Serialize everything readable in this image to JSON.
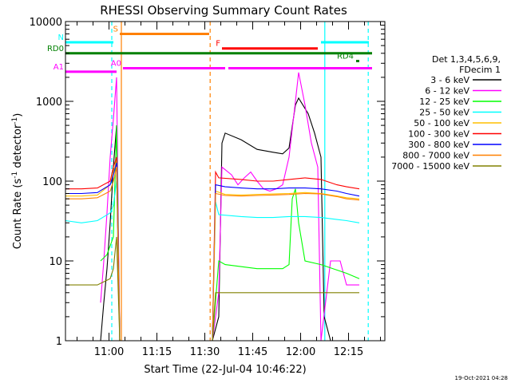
{
  "chart_data": {
    "type": "line",
    "title": "RHESSI Observing Summary Count Rates",
    "xlabel": "Start Time (22-Jul-04 10:46:22)",
    "ylabel_main": "Count Rate (s",
    "ylabel_sup": "-1",
    "ylabel_mid": " detector",
    "ylabel_sup2": "-1",
    "ylabel_end": ")",
    "x_units": "minutes since 10:46:22 UT",
    "xlim": [
      0,
      100
    ],
    "ylim": [
      1,
      10000
    ],
    "y_scale": "log",
    "x_ticks": [
      {
        "label": "11:00",
        "value": 13.63
      },
      {
        "label": "11:15",
        "value": 28.63
      },
      {
        "label": "11:30",
        "value": 43.63
      },
      {
        "label": "11:45",
        "value": 58.63
      },
      {
        "label": "12:00",
        "value": 73.63
      },
      {
        "label": "12:15",
        "value": 88.63
      }
    ],
    "y_ticks": [
      {
        "label": "1",
        "value": 1
      },
      {
        "label": "10",
        "value": 10
      },
      {
        "label": "100",
        "value": 100
      },
      {
        "label": "1000",
        "value": 1000
      },
      {
        "label": "10000",
        "value": 10000
      }
    ],
    "legend_header": [
      "Det 1,3,4,5,6,9,",
      "FDecim 1"
    ],
    "legend_position": "right",
    "series": [
      {
        "name": "3 - 6 keV",
        "color": "#000000",
        "points": [
          [
            11,
            1
          ],
          [
            12,
            3
          ],
          [
            13,
            8
          ],
          [
            14,
            30
          ],
          [
            15,
            150
          ],
          [
            16,
            500
          ],
          [
            17,
            1
          ],
          [
            46,
            1
          ],
          [
            48,
            2
          ],
          [
            49,
            300
          ],
          [
            50,
            400
          ],
          [
            55,
            330
          ],
          [
            60,
            250
          ],
          [
            65,
            230
          ],
          [
            68,
            220
          ],
          [
            70,
            260
          ],
          [
            72,
            900
          ],
          [
            73,
            1100
          ],
          [
            76,
            700
          ],
          [
            78,
            400
          ],
          [
            80,
            200
          ],
          [
            81,
            2
          ],
          [
            83,
            1
          ],
          [
            98,
            1
          ]
        ]
      },
      {
        "name": "6 - 12 keV",
        "color": "#ff00ff",
        "points": [
          [
            11,
            3
          ],
          [
            12,
            10
          ],
          [
            13,
            40
          ],
          [
            14,
            200
          ],
          [
            15,
            600
          ],
          [
            16,
            2000
          ],
          [
            17,
            1
          ],
          [
            46,
            1
          ],
          [
            48,
            4
          ],
          [
            49,
            150
          ],
          [
            52,
            120
          ],
          [
            54,
            90
          ],
          [
            56,
            110
          ],
          [
            58,
            130
          ],
          [
            60,
            100
          ],
          [
            62,
            80
          ],
          [
            64,
            75
          ],
          [
            66,
            80
          ],
          [
            68,
            90
          ],
          [
            70,
            200
          ],
          [
            72,
            1000
          ],
          [
            73,
            2300
          ],
          [
            75,
            900
          ],
          [
            77,
            300
          ],
          [
            79,
            150
          ],
          [
            80,
            1
          ],
          [
            83,
            10
          ],
          [
            86,
            10
          ],
          [
            88,
            5
          ],
          [
            92,
            5
          ]
        ]
      },
      {
        "name": "12 - 25 keV",
        "color": "#00ff00",
        "points": [
          [
            11,
            10
          ],
          [
            13,
            12
          ],
          [
            15,
            20
          ],
          [
            16,
            500
          ],
          [
            17,
            1
          ],
          [
            46,
            1
          ],
          [
            48,
            10
          ],
          [
            50,
            9
          ],
          [
            60,
            8
          ],
          [
            68,
            8
          ],
          [
            70,
            9
          ],
          [
            71,
            60
          ],
          [
            72,
            80
          ],
          [
            73,
            30
          ],
          [
            75,
            10
          ],
          [
            80,
            9
          ],
          [
            88,
            7
          ],
          [
            92,
            6
          ]
        ]
      },
      {
        "name": "25 - 50 keV",
        "color": "#00ffff",
        "points": [
          [
            0,
            32
          ],
          [
            5,
            30
          ],
          [
            10,
            32
          ],
          [
            14,
            40
          ],
          [
            15,
            50
          ],
          [
            16,
            100
          ],
          [
            17,
            1
          ],
          [
            46,
            1
          ],
          [
            47,
            55
          ],
          [
            48,
            38
          ],
          [
            55,
            36
          ],
          [
            60,
            35
          ],
          [
            65,
            35
          ],
          [
            70,
            36
          ],
          [
            75,
            36
          ],
          [
            80,
            35
          ],
          [
            85,
            33
          ],
          [
            88,
            32
          ],
          [
            92,
            30
          ]
        ]
      },
      {
        "name": "50 - 100 keV",
        "color": "#ffbf00",
        "points": [
          [
            0,
            65
          ],
          [
            5,
            65
          ],
          [
            10,
            67
          ],
          [
            14,
            90
          ],
          [
            15,
            130
          ],
          [
            16,
            180
          ],
          [
            17,
            1
          ],
          [
            46,
            1
          ],
          [
            47,
            75
          ],
          [
            50,
            68
          ],
          [
            55,
            67
          ],
          [
            60,
            68
          ],
          [
            65,
            69
          ],
          [
            70,
            70
          ],
          [
            75,
            72
          ],
          [
            80,
            70
          ],
          [
            85,
            65
          ],
          [
            88,
            62
          ],
          [
            92,
            60
          ]
        ]
      },
      {
        "name": "100 - 300 keV",
        "color": "#ff0000",
        "points": [
          [
            0,
            80
          ],
          [
            5,
            80
          ],
          [
            10,
            82
          ],
          [
            14,
            100
          ],
          [
            15,
            150
          ],
          [
            16,
            200
          ],
          [
            17,
            1
          ],
          [
            46,
            1
          ],
          [
            47,
            130
          ],
          [
            48,
            110
          ],
          [
            55,
            105
          ],
          [
            60,
            100
          ],
          [
            65,
            100
          ],
          [
            70,
            105
          ],
          [
            75,
            110
          ],
          [
            80,
            105
          ],
          [
            85,
            90
          ],
          [
            88,
            85
          ],
          [
            92,
            80
          ]
        ]
      },
      {
        "name": "300 - 800 keV",
        "color": "#0000ff",
        "points": [
          [
            0,
            70
          ],
          [
            5,
            70
          ],
          [
            10,
            72
          ],
          [
            14,
            90
          ],
          [
            15,
            120
          ],
          [
            16,
            170
          ],
          [
            17,
            1
          ],
          [
            46,
            1
          ],
          [
            47,
            90
          ],
          [
            50,
            85
          ],
          [
            55,
            82
          ],
          [
            60,
            80
          ],
          [
            65,
            80
          ],
          [
            70,
            82
          ],
          [
            75,
            82
          ],
          [
            80,
            80
          ],
          [
            85,
            75
          ],
          [
            88,
            70
          ],
          [
            92,
            65
          ]
        ]
      },
      {
        "name": "800 - 7000 keV",
        "color": "#ff8000",
        "points": [
          [
            0,
            60
          ],
          [
            5,
            60
          ],
          [
            10,
            62
          ],
          [
            14,
            75
          ],
          [
            15,
            100
          ],
          [
            16,
            150
          ],
          [
            17,
            1
          ],
          [
            46,
            1
          ],
          [
            47,
            70
          ],
          [
            50,
            66
          ],
          [
            55,
            65
          ],
          [
            60,
            66
          ],
          [
            65,
            67
          ],
          [
            70,
            68
          ],
          [
            75,
            70
          ],
          [
            80,
            69
          ],
          [
            85,
            64
          ],
          [
            88,
            60
          ],
          [
            92,
            58
          ]
        ]
      },
      {
        "name": "7000 - 15000 keV",
        "color": "#808000",
        "points": [
          [
            0,
            5
          ],
          [
            5,
            5
          ],
          [
            10,
            5
          ],
          [
            14,
            6
          ],
          [
            15,
            8
          ],
          [
            16,
            20
          ],
          [
            17,
            1
          ],
          [
            46,
            1
          ],
          [
            47,
            4
          ],
          [
            50,
            4
          ],
          [
            60,
            4
          ],
          [
            70,
            4
          ],
          [
            80,
            4
          ],
          [
            88,
            4
          ],
          [
            92,
            4
          ]
        ]
      }
    ],
    "state_bars": [
      {
        "label": "S",
        "color": "#ff8000",
        "y": 7000,
        "x0": 17,
        "x1": 45
      },
      {
        "label": "N",
        "color": "#00ffff",
        "y": 5500,
        "x0": 0,
        "x1": 15
      },
      {
        "label": "",
        "color": "#00ffff",
        "y": 5500,
        "x0": 80,
        "x1": 95
      },
      {
        "label": "F",
        "color": "#ff0000",
        "y": 4600,
        "x0": 49,
        "x1": 79
      },
      {
        "label": "RD0",
        "color": "#008000",
        "y": 4000,
        "x0": 0,
        "x1": 96
      },
      {
        "label": "RD4",
        "color": "#008000",
        "y": 3200,
        "x0": 91,
        "x1": 92
      },
      {
        "label": "A0",
        "color": "#ff00ff",
        "y": 2600,
        "x0": 18,
        "x1": 50
      },
      {
        "label": "",
        "color": "#ff00ff",
        "y": 2600,
        "x0": 51,
        "x1": 96
      },
      {
        "label": "A1",
        "color": "#ff00ff",
        "y": 2350,
        "x0": 0,
        "x1": 16
      }
    ],
    "vertical_markers": [
      {
        "x": 14.5,
        "color": "#00ffff",
        "style": "dashed"
      },
      {
        "x": 17.5,
        "color": "#ff8000",
        "style": "solid"
      },
      {
        "x": 45.3,
        "color": "#ff8000",
        "style": "dashed"
      },
      {
        "x": 81.2,
        "color": "#00ffff",
        "style": "solid"
      },
      {
        "x": 94.8,
        "color": "#00ffff",
        "style": "dashed"
      }
    ],
    "footer_date": "19-Oct-2021 04:28"
  }
}
